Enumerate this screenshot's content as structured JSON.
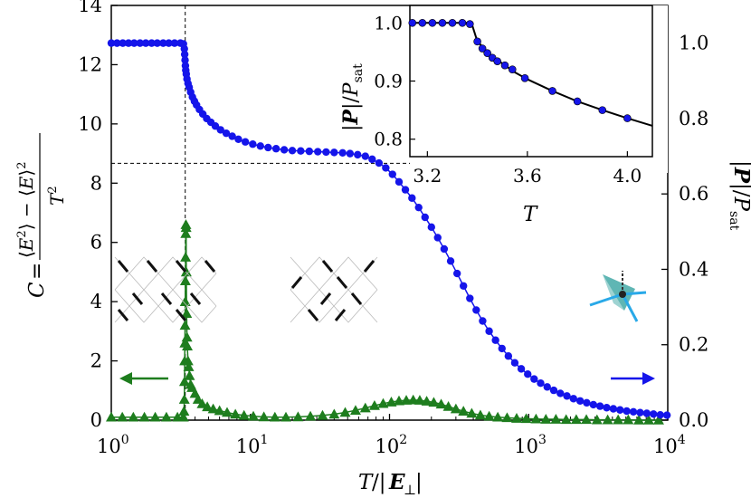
{
  "chart_data": [
    {
      "type": "scatter",
      "xscale": "log",
      "xlabel": "T/|E⊥|",
      "ylabel_left": "C = (⟨E²⟩ − ⟨E⟩²) / T²",
      "ylabel_right": "|P|/P_sat",
      "xlim": [
        1,
        10000
      ],
      "ylim_left": [
        0,
        14
      ],
      "ylim_right": [
        0,
        1.1
      ],
      "x_ticks": [
        {
          "value": 1,
          "mant": "10",
          "exp": "0"
        },
        {
          "value": 10,
          "mant": "10",
          "exp": "1"
        },
        {
          "value": 100,
          "mant": "10",
          "exp": "2"
        },
        {
          "value": 1000,
          "mant": "10",
          "exp": "3"
        },
        {
          "value": 10000,
          "mant": "10",
          "exp": "4"
        }
      ],
      "y_ticks_left": [
        "0",
        "2",
        "4",
        "6",
        "8",
        "10",
        "12",
        "14"
      ],
      "y_ticks_right": [
        "0.0",
        "0.2",
        "0.4",
        "0.6",
        "0.8",
        "1.0"
      ],
      "reference_lines": {
        "vertical_x": 3.4,
        "horizontal_y_left": 8.67
      },
      "series": [
        {
          "axis": "left",
          "marker": "triangle",
          "color": "#1e7d1e",
          "points": [
            [
              1.0,
              0.1
            ],
            [
              1.2,
              0.1
            ],
            [
              1.44,
              0.1
            ],
            [
              1.73,
              0.1
            ],
            [
              2.07,
              0.1
            ],
            [
              2.49,
              0.1
            ],
            [
              2.99,
              0.1
            ],
            [
              3.3,
              0.1
            ],
            [
              3.33,
              0.3
            ],
            [
              3.35,
              0.7
            ],
            [
              3.36,
              1.3
            ],
            [
              3.37,
              2.0
            ],
            [
              3.38,
              2.6
            ],
            [
              3.39,
              3.2
            ],
            [
              3.4,
              4.0
            ],
            [
              3.41,
              4.7
            ],
            [
              3.42,
              5.5
            ],
            [
              3.43,
              6.3
            ],
            [
              3.44,
              6.6
            ],
            [
              3.45,
              6.5
            ],
            [
              3.46,
              5.0
            ],
            [
              3.48,
              3.6
            ],
            [
              3.5,
              2.8
            ],
            [
              3.52,
              2.5
            ],
            [
              3.56,
              2.0
            ],
            [
              3.6,
              1.8
            ],
            [
              3.65,
              1.5
            ],
            [
              3.72,
              1.2
            ],
            [
              3.8,
              1.1
            ],
            [
              4.0,
              0.9
            ],
            [
              4.2,
              0.7
            ],
            [
              4.5,
              0.55
            ],
            [
              4.9,
              0.45
            ],
            [
              5.4,
              0.38
            ],
            [
              6.0,
              0.32
            ],
            [
              6.8,
              0.26
            ],
            [
              7.8,
              0.2
            ],
            [
              9.0,
              0.16
            ],
            [
              10.5,
              0.13
            ],
            [
              12.5,
              0.11
            ],
            [
              15,
              0.1
            ],
            [
              18,
              0.1
            ],
            [
              22,
              0.11
            ],
            [
              27,
              0.13
            ],
            [
              33,
              0.16
            ],
            [
              40,
              0.2
            ],
            [
              48,
              0.26
            ],
            [
              57,
              0.33
            ],
            [
              67,
              0.41
            ],
            [
              78,
              0.49
            ],
            [
              90,
              0.56
            ],
            [
              103,
              0.61
            ],
            [
              117,
              0.65
            ],
            [
              132,
              0.67
            ],
            [
              148,
              0.68
            ],
            [
              165,
              0.67
            ],
            [
              185,
              0.64
            ],
            [
              208,
              0.6
            ],
            [
              235,
              0.54
            ],
            [
              265,
              0.46
            ],
            [
              300,
              0.38
            ],
            [
              340,
              0.3
            ],
            [
              390,
              0.23
            ],
            [
              450,
              0.17
            ],
            [
              520,
              0.13
            ],
            [
              600,
              0.1
            ],
            [
              700,
              0.08
            ],
            [
              820,
              0.06
            ],
            [
              960,
              0.05
            ],
            [
              1130,
              0.04
            ],
            [
              1330,
              0.03
            ],
            [
              1570,
              0.03
            ],
            [
              1860,
              0.02
            ],
            [
              2200,
              0.02
            ],
            [
              2600,
              0.02
            ],
            [
              3100,
              0.01
            ],
            [
              3700,
              0.01
            ],
            [
              4400,
              0.01
            ],
            [
              5200,
              0.01
            ],
            [
              6200,
              0.0
            ],
            [
              7300,
              0.0
            ],
            [
              8600,
              0.0
            ]
          ]
        },
        {
          "axis": "right",
          "marker": "circle",
          "color": "#1515ea",
          "points": [
            [
              1.0,
              1.0
            ],
            [
              1.1,
              1.0
            ],
            [
              1.21,
              1.0
            ],
            [
              1.33,
              1.0
            ],
            [
              1.46,
              1.0
            ],
            [
              1.61,
              1.0
            ],
            [
              1.77,
              1.0
            ],
            [
              1.95,
              1.0
            ],
            [
              2.14,
              1.0
            ],
            [
              2.36,
              1.0
            ],
            [
              2.59,
              1.0
            ],
            [
              2.85,
              1.0
            ],
            [
              3.14,
              1.0
            ],
            [
              3.3,
              0.998
            ],
            [
              3.35,
              0.985
            ],
            [
              3.37,
              0.97
            ],
            [
              3.39,
              0.955
            ],
            [
              3.41,
              0.94
            ],
            [
              3.43,
              0.928
            ],
            [
              3.46,
              0.918
            ],
            [
              3.5,
              0.905
            ],
            [
              3.56,
              0.893
            ],
            [
              3.63,
              0.883
            ],
            [
              3.72,
              0.87
            ],
            [
              3.83,
              0.857
            ],
            [
              3.96,
              0.846
            ],
            [
              4.1,
              0.836
            ],
            [
              4.3,
              0.824
            ],
            [
              4.55,
              0.812
            ],
            [
              4.85,
              0.8
            ],
            [
              5.2,
              0.79
            ],
            [
              5.6,
              0.78
            ],
            [
              6.1,
              0.77
            ],
            [
              6.7,
              0.761
            ],
            [
              7.4,
              0.753
            ],
            [
              8.2,
              0.745
            ],
            [
              9.2,
              0.738
            ],
            [
              10.4,
              0.732
            ],
            [
              11.8,
              0.727
            ],
            [
              13.4,
              0.723
            ],
            [
              15.3,
              0.72
            ],
            [
              17.5,
              0.717
            ],
            [
              20,
              0.715
            ],
            [
              23,
              0.714
            ],
            [
              26.5,
              0.713
            ],
            [
              30.5,
              0.712
            ],
            [
              35,
              0.711
            ],
            [
              40,
              0.71
            ],
            [
              46,
              0.709
            ],
            [
              52,
              0.707
            ],
            [
              59,
              0.704
            ],
            [
              67,
              0.7
            ],
            [
              75,
              0.692
            ],
            [
              84,
              0.682
            ],
            [
              94,
              0.669
            ],
            [
              105,
              0.652
            ],
            [
              117,
              0.632
            ],
            [
              130,
              0.611
            ],
            [
              145,
              0.589
            ],
            [
              162,
              0.564
            ],
            [
              180,
              0.538
            ],
            [
              200,
              0.512
            ],
            [
              222,
              0.484
            ],
            [
              247,
              0.454
            ],
            [
              275,
              0.422
            ],
            [
              306,
              0.389
            ],
            [
              340,
              0.356
            ],
            [
              378,
              0.323
            ],
            [
              420,
              0.292
            ],
            [
              467,
              0.263
            ],
            [
              520,
              0.236
            ],
            [
              578,
              0.212
            ],
            [
              643,
              0.19
            ],
            [
              715,
              0.17
            ],
            [
              795,
              0.152
            ],
            [
              885,
              0.136
            ],
            [
              985,
              0.122
            ],
            [
              1095,
              0.109
            ],
            [
              1220,
              0.098
            ],
            [
              1360,
              0.088
            ],
            [
              1515,
              0.079
            ],
            [
              1690,
              0.071
            ],
            [
              1885,
              0.064
            ],
            [
              2100,
              0.057
            ],
            [
              2345,
              0.051
            ],
            [
              2615,
              0.046
            ],
            [
              2920,
              0.041
            ],
            [
              3260,
              0.037
            ],
            [
              3640,
              0.033
            ],
            [
              4065,
              0.03
            ],
            [
              4540,
              0.027
            ],
            [
              5070,
              0.024
            ],
            [
              5665,
              0.022
            ],
            [
              6330,
              0.02
            ],
            [
              7070,
              0.018
            ],
            [
              7900,
              0.016
            ],
            [
              8830,
              0.014
            ],
            [
              9870,
              0.013
            ]
          ]
        }
      ]
    },
    {
      "type": "line",
      "inset": true,
      "xlabel": "T",
      "ylabel": "|P|/P_sat",
      "xlim": [
        3.13,
        4.1
      ],
      "ylim": [
        0.77,
        1.03
      ],
      "x_ticks": [
        "3.2",
        "3.6",
        "4.0"
      ],
      "y_ticks": [
        "0.8",
        "0.9",
        "1.0"
      ],
      "line": {
        "color": "#000000",
        "points": [
          [
            3.13,
            1.0
          ],
          [
            3.2,
            1.0
          ],
          [
            3.3,
            1.0
          ],
          [
            3.36,
            1.0
          ],
          [
            3.38,
            0.995
          ],
          [
            3.4,
            0.968
          ],
          [
            3.45,
            0.946
          ],
          [
            3.5,
            0.93
          ],
          [
            3.55,
            0.915
          ],
          [
            3.6,
            0.903
          ],
          [
            3.7,
            0.883
          ],
          [
            3.8,
            0.865
          ],
          [
            3.9,
            0.85
          ],
          [
            4.0,
            0.836
          ],
          [
            4.1,
            0.823
          ]
        ]
      },
      "markers": {
        "color": "#1515ea",
        "points": [
          [
            3.14,
            1.0
          ],
          [
            3.18,
            1.0
          ],
          [
            3.22,
            1.0
          ],
          [
            3.26,
            1.0
          ],
          [
            3.3,
            1.0
          ],
          [
            3.34,
            1.0
          ],
          [
            3.37,
            0.998
          ],
          [
            3.4,
            0.968
          ],
          [
            3.42,
            0.956
          ],
          [
            3.44,
            0.948
          ],
          [
            3.46,
            0.94
          ],
          [
            3.48,
            0.934
          ],
          [
            3.51,
            0.927
          ],
          [
            3.54,
            0.92
          ],
          [
            3.59,
            0.905
          ],
          [
            3.7,
            0.883
          ],
          [
            3.8,
            0.865
          ],
          [
            3.9,
            0.85
          ],
          [
            4.0,
            0.836
          ]
        ]
      }
    }
  ],
  "decorations": {
    "arrow_left_color": "#1e7d1e",
    "arrow_right_color": "#1515ea",
    "tetrahedron_face_color": "#2a9d9b",
    "tetrahedron_arrow_color": "#29a9e8"
  }
}
